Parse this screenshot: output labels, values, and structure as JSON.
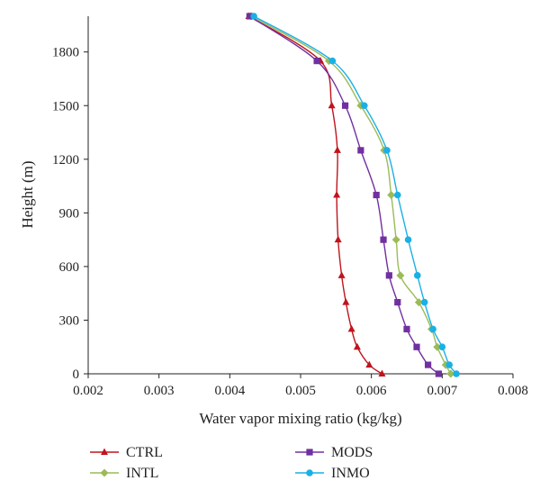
{
  "chart_data": {
    "type": "line",
    "xlabel": "Water vapor mixing ratio (kg/kg)",
    "ylabel": "Height (m)",
    "xlim": [
      0.002,
      0.008
    ],
    "ylim": [
      0,
      2000
    ],
    "x_ticks": [
      "0.002",
      "0.003",
      "0.004",
      "0.005",
      "0.006",
      "0.007",
      "0.008"
    ],
    "y_ticks": [
      "0",
      "300",
      "600",
      "900",
      "1200",
      "1500",
      "1800"
    ],
    "grid": false,
    "legend_position": "bottom",
    "series": [
      {
        "name": "CTRL",
        "color": "#c0141c",
        "marker": "triangle",
        "points": [
          [
            0.00615,
            0
          ],
          [
            0.00597,
            50
          ],
          [
            0.0058,
            150
          ],
          [
            0.00572,
            250
          ],
          [
            0.00564,
            400
          ],
          [
            0.00558,
            550
          ],
          [
            0.00553,
            750
          ],
          [
            0.00551,
            1000
          ],
          [
            0.00552,
            1250
          ],
          [
            0.00544,
            1500
          ],
          [
            0.00528,
            1750
          ],
          [
            0.00427,
            2000
          ]
        ]
      },
      {
        "name": "INTL",
        "color": "#9bbb59",
        "marker": "diamond",
        "points": [
          [
            0.00712,
            0
          ],
          [
            0.00705,
            50
          ],
          [
            0.00693,
            150
          ],
          [
            0.00685,
            250
          ],
          [
            0.00667,
            400
          ],
          [
            0.00641,
            550
          ],
          [
            0.00635,
            750
          ],
          [
            0.00628,
            1000
          ],
          [
            0.00618,
            1250
          ],
          [
            0.00585,
            1500
          ],
          [
            0.0054,
            1750
          ],
          [
            0.0043,
            2000
          ]
        ]
      },
      {
        "name": "MODS",
        "color": "#7030a0",
        "marker": "square",
        "points": [
          [
            0.00695,
            0
          ],
          [
            0.0068,
            50
          ],
          [
            0.00664,
            150
          ],
          [
            0.0065,
            250
          ],
          [
            0.00637,
            400
          ],
          [
            0.00625,
            550
          ],
          [
            0.00617,
            750
          ],
          [
            0.00607,
            1000
          ],
          [
            0.00585,
            1250
          ],
          [
            0.00563,
            1500
          ],
          [
            0.00523,
            1750
          ],
          [
            0.00428,
            2000
          ]
        ]
      },
      {
        "name": "INMO",
        "color": "#1ab0e6",
        "marker": "circle",
        "points": [
          [
            0.0072,
            0
          ],
          [
            0.0071,
            50
          ],
          [
            0.007,
            150
          ],
          [
            0.00687,
            250
          ],
          [
            0.00675,
            400
          ],
          [
            0.00665,
            550
          ],
          [
            0.00652,
            750
          ],
          [
            0.00637,
            1000
          ],
          [
            0.00622,
            1250
          ],
          [
            0.0059,
            1500
          ],
          [
            0.00545,
            1750
          ],
          [
            0.00434,
            2000
          ]
        ]
      }
    ]
  }
}
